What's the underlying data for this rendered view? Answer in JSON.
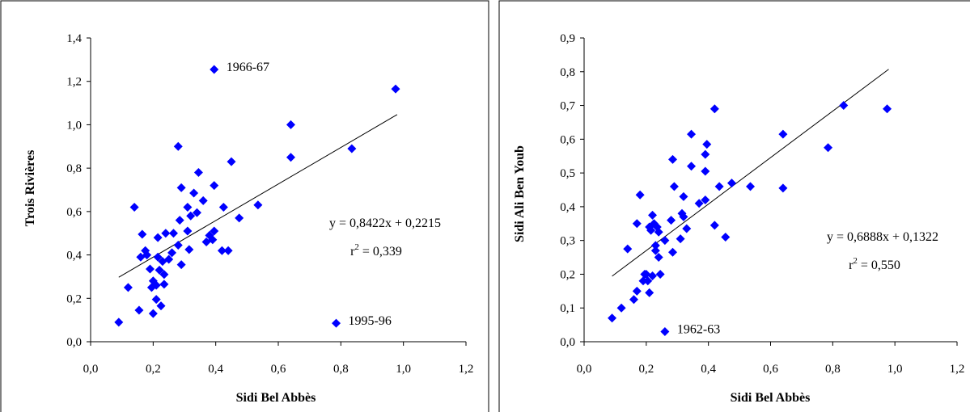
{
  "chart_data": [
    {
      "type": "scatter",
      "xlabel": "Sidi Bel Abbès",
      "ylabel": "Trois Rivières",
      "xlim": [
        0,
        1.2
      ],
      "ylim": [
        0,
        1.4
      ],
      "x_ticks": [
        "0,0",
        "0,2",
        "0,4",
        "0,6",
        "0,8",
        "1,0",
        "1,2"
      ],
      "y_ticks": [
        "0,0",
        "0,2",
        "0,4",
        "0,6",
        "0,8",
        "1,0",
        "1,2",
        "1,4"
      ],
      "marker_color": "#0000ff",
      "grid": false,
      "equation": "y = 0,8422x + 0,2215",
      "r2_label": "r",
      "r2_sup": "2",
      "r2_value": " = 0,339",
      "trendline": {
        "slope": 0.8422,
        "intercept": 0.2215,
        "x_range": [
          0.09,
          0.98
        ]
      },
      "annotations": [
        {
          "text": "1966-67",
          "x": 0.395,
          "y": 1.255
        },
        {
          "text": "1995-96",
          "x": 0.785,
          "y": 0.085
        }
      ],
      "points": [
        [
          0.09,
          0.09
        ],
        [
          0.12,
          0.25
        ],
        [
          0.14,
          0.62
        ],
        [
          0.155,
          0.145
        ],
        [
          0.16,
          0.39
        ],
        [
          0.165,
          0.495
        ],
        [
          0.175,
          0.42
        ],
        [
          0.18,
          0.4
        ],
        [
          0.19,
          0.335
        ],
        [
          0.195,
          0.25
        ],
        [
          0.2,
          0.13
        ],
        [
          0.2,
          0.28
        ],
        [
          0.21,
          0.195
        ],
        [
          0.21,
          0.26
        ],
        [
          0.215,
          0.48
        ],
        [
          0.215,
          0.39
        ],
        [
          0.22,
          0.33
        ],
        [
          0.225,
          0.165
        ],
        [
          0.23,
          0.37
        ],
        [
          0.235,
          0.31
        ],
        [
          0.235,
          0.265
        ],
        [
          0.24,
          0.5
        ],
        [
          0.25,
          0.38
        ],
        [
          0.26,
          0.41
        ],
        [
          0.265,
          0.5
        ],
        [
          0.28,
          0.9
        ],
        [
          0.28,
          0.445
        ],
        [
          0.285,
          0.56
        ],
        [
          0.29,
          0.355
        ],
        [
          0.29,
          0.71
        ],
        [
          0.31,
          0.51
        ],
        [
          0.31,
          0.62
        ],
        [
          0.315,
          0.425
        ],
        [
          0.32,
          0.58
        ],
        [
          0.33,
          0.685
        ],
        [
          0.34,
          0.595
        ],
        [
          0.345,
          0.78
        ],
        [
          0.36,
          0.65
        ],
        [
          0.37,
          0.46
        ],
        [
          0.38,
          0.49
        ],
        [
          0.39,
          0.47
        ],
        [
          0.395,
          0.51
        ],
        [
          0.395,
          0.72
        ],
        [
          0.395,
          1.255
        ],
        [
          0.42,
          0.42
        ],
        [
          0.425,
          0.62
        ],
        [
          0.44,
          0.42
        ],
        [
          0.45,
          0.83
        ],
        [
          0.475,
          0.57
        ],
        [
          0.535,
          0.63
        ],
        [
          0.64,
          1.0
        ],
        [
          0.64,
          0.85
        ],
        [
          0.785,
          0.085
        ],
        [
          0.835,
          0.89
        ],
        [
          0.975,
          1.165
        ]
      ]
    },
    {
      "type": "scatter",
      "xlabel": "Sidi Bel Abbès",
      "ylabel": "Sidi Ali Ben Youb",
      "xlim": [
        0,
        1.2
      ],
      "ylim": [
        0,
        0.9
      ],
      "x_ticks": [
        "0,0",
        "0,2",
        "0,4",
        "0,6",
        "0,8",
        "1,0",
        "1,2"
      ],
      "y_ticks": [
        "0,0",
        "0,1",
        "0,2",
        "0,3",
        "0,4",
        "0,5",
        "0,6",
        "0,7",
        "0,8",
        "0,9"
      ],
      "marker_color": "#0000ff",
      "grid": false,
      "equation": "y = 0,6888x + 0,1322",
      "r2_label": "r",
      "r2_sup": "2",
      "r2_value": " = 0,550",
      "trendline": {
        "slope": 0.6888,
        "intercept": 0.1322,
        "x_range": [
          0.09,
          0.98
        ]
      },
      "annotations": [
        {
          "text": "1962-63",
          "x": 0.26,
          "y": 0.03
        }
      ],
      "points": [
        [
          0.09,
          0.07
        ],
        [
          0.12,
          0.1
        ],
        [
          0.14,
          0.275
        ],
        [
          0.16,
          0.125
        ],
        [
          0.17,
          0.35
        ],
        [
          0.17,
          0.15
        ],
        [
          0.18,
          0.435
        ],
        [
          0.19,
          0.18
        ],
        [
          0.195,
          0.2
        ],
        [
          0.2,
          0.2
        ],
        [
          0.205,
          0.18
        ],
        [
          0.21,
          0.145
        ],
        [
          0.21,
          0.34
        ],
        [
          0.215,
          0.33
        ],
        [
          0.22,
          0.375
        ],
        [
          0.22,
          0.195
        ],
        [
          0.225,
          0.35
        ],
        [
          0.23,
          0.27
        ],
        [
          0.23,
          0.285
        ],
        [
          0.235,
          0.34
        ],
        [
          0.24,
          0.25
        ],
        [
          0.24,
          0.325
        ],
        [
          0.245,
          0.2
        ],
        [
          0.26,
          0.03
        ],
        [
          0.26,
          0.3
        ],
        [
          0.28,
          0.36
        ],
        [
          0.285,
          0.54
        ],
        [
          0.285,
          0.265
        ],
        [
          0.29,
          0.46
        ],
        [
          0.31,
          0.305
        ],
        [
          0.315,
          0.38
        ],
        [
          0.32,
          0.37
        ],
        [
          0.32,
          0.43
        ],
        [
          0.33,
          0.335
        ],
        [
          0.345,
          0.52
        ],
        [
          0.345,
          0.615
        ],
        [
          0.37,
          0.41
        ],
        [
          0.39,
          0.42
        ],
        [
          0.39,
          0.505
        ],
        [
          0.39,
          0.555
        ],
        [
          0.395,
          0.585
        ],
        [
          0.42,
          0.345
        ],
        [
          0.42,
          0.69
        ],
        [
          0.435,
          0.46
        ],
        [
          0.455,
          0.31
        ],
        [
          0.475,
          0.47
        ],
        [
          0.535,
          0.46
        ],
        [
          0.64,
          0.615
        ],
        [
          0.64,
          0.455
        ],
        [
          0.785,
          0.575
        ],
        [
          0.835,
          0.7
        ],
        [
          0.975,
          0.69
        ]
      ]
    }
  ]
}
